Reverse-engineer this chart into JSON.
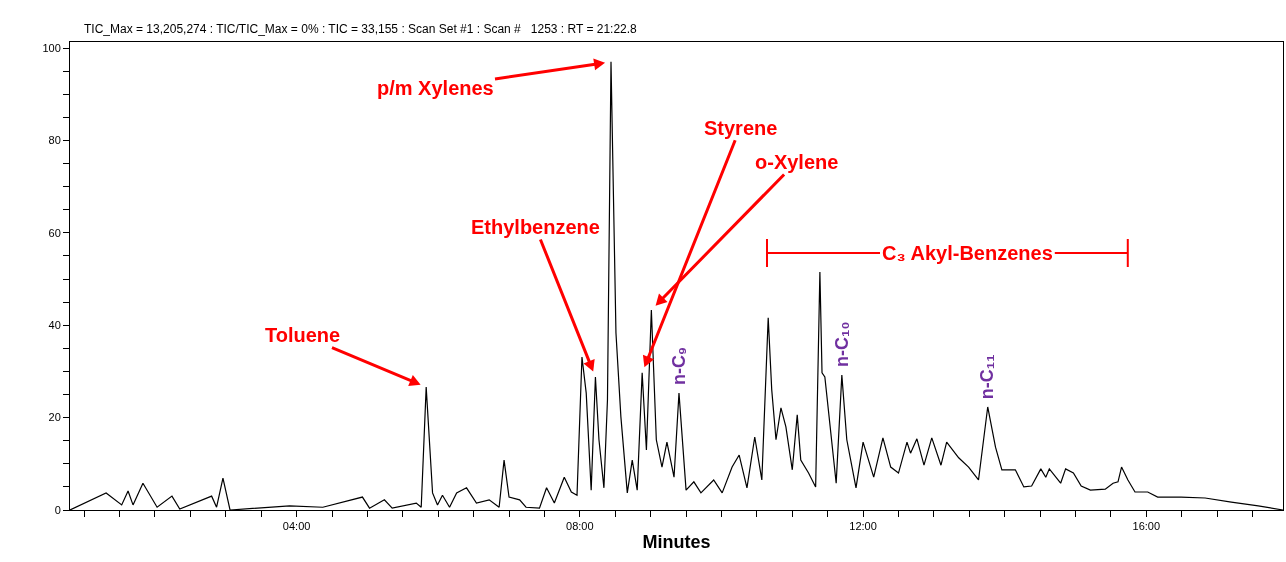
{
  "chart_data": {
    "type": "line",
    "xlabel": "Minutes",
    "x": [
      0.8,
      1.31,
      1.53,
      1.62,
      1.69,
      1.83,
      2.03,
      2.24,
      2.35,
      2.8,
      2.87,
      2.96,
      3.06,
      3.9,
      4.37,
      4.93,
      5.03,
      5.24,
      5.35,
      5.69,
      5.76,
      5.83,
      5.92,
      5.99,
      6.06,
      6.16,
      6.26,
      6.4,
      6.54,
      6.72,
      6.86,
      6.93,
      7.0,
      7.15,
      7.24,
      7.43,
      7.53,
      7.64,
      7.78,
      7.88,
      7.96,
      8.03,
      8.09,
      8.16,
      8.22,
      8.27,
      8.34,
      8.39,
      8.44,
      8.51,
      8.58,
      8.67,
      8.74,
      8.81,
      8.88,
      8.94,
      9.01,
      9.08,
      9.16,
      9.23,
      9.33,
      9.4,
      9.5,
      9.61,
      9.71,
      9.89,
      10.01,
      10.15,
      10.25,
      10.36,
      10.47,
      10.57,
      10.66,
      10.71,
      10.77,
      10.84,
      10.91,
      11.0,
      11.07,
      11.12,
      11.23,
      11.33,
      11.39,
      11.42,
      11.46,
      11.62,
      11.7,
      11.77,
      11.9,
      12.0,
      12.15,
      12.28,
      12.39,
      12.5,
      12.62,
      12.67,
      12.76,
      12.86,
      12.97,
      13.1,
      13.18,
      13.35,
      13.49,
      13.63,
      13.76,
      13.87,
      13.96,
      14.15,
      14.27,
      14.38,
      14.51,
      14.58,
      14.63,
      14.79,
      14.86,
      14.97,
      15.08,
      15.21,
      15.42,
      15.53,
      15.6,
      15.65,
      15.74,
      15.84,
      16.02,
      16.16,
      16.49,
      16.83,
      17.2,
      17.58,
      17.93
    ],
    "series": [
      {
        "color": "#000000",
        "values": [
          0,
          3.7,
          1.1,
          4.1,
          1.1,
          5.8,
          0.6,
          3.0,
          0.2,
          3.0,
          0.6,
          6.9,
          0,
          0.9,
          0.6,
          2.8,
          0.4,
          2.2,
          0.4,
          1.5,
          0.6,
          26.6,
          3.7,
          1.1,
          3.2,
          0.6,
          3.7,
          4.8,
          1.5,
          2.2,
          0.6,
          10.8,
          2.8,
          2.2,
          0.6,
          0.4,
          4.8,
          1.5,
          7.1,
          3.9,
          3.2,
          33.1,
          25.3,
          4.3,
          28.8,
          15.2,
          4.8,
          23.8,
          97.0,
          38.3,
          20.1,
          3.7,
          10.8,
          4.3,
          29.7,
          13.0,
          43.3,
          15.2,
          9.3,
          14.7,
          7.1,
          25.3,
          4.3,
          6.1,
          3.7,
          6.5,
          3.7,
          9.3,
          11.9,
          4.8,
          15.8,
          6.5,
          41.6,
          26.0,
          15.2,
          22.1,
          18.0,
          8.7,
          20.6,
          10.8,
          8.0,
          5.0,
          51.5,
          29.7,
          28.8,
          5.8,
          29.2,
          15.2,
          4.8,
          14.7,
          7.1,
          15.6,
          9.3,
          8.0,
          14.7,
          12.3,
          15.4,
          9.7,
          15.6,
          9.7,
          14.7,
          11.3,
          9.3,
          6.5,
          22.3,
          13.6,
          8.7,
          8.7,
          5.0,
          5.2,
          8.9,
          7.1,
          8.9,
          5.8,
          8.9,
          8.0,
          5.2,
          4.3,
          4.5,
          5.8,
          6.1,
          9.3,
          6.5,
          3.9,
          3.9,
          2.8,
          2.8,
          2.6,
          1.7,
          0.9,
          0
        ]
      }
    ],
    "xlim": [
      0.8,
      17.93
    ],
    "xticks": [
      {
        "value": 1,
        "label": null
      },
      {
        "value": 1.5,
        "label": null
      },
      {
        "value": 2,
        "label": null
      },
      {
        "value": 2.5,
        "label": null
      },
      {
        "value": 3,
        "label": null
      },
      {
        "value": 3.5,
        "label": null
      },
      {
        "value": 4,
        "label": "04:00"
      },
      {
        "value": 4.5,
        "label": null
      },
      {
        "value": 5,
        "label": null
      },
      {
        "value": 5.5,
        "label": null
      },
      {
        "value": 6,
        "label": null
      },
      {
        "value": 6.5,
        "label": null
      },
      {
        "value": 7,
        "label": null
      },
      {
        "value": 7.5,
        "label": null
      },
      {
        "value": 8,
        "label": "08:00"
      },
      {
        "value": 8.5,
        "label": null
      },
      {
        "value": 9,
        "label": null
      },
      {
        "value": 9.5,
        "label": null
      },
      {
        "value": 10,
        "label": null
      },
      {
        "value": 10.5,
        "label": null
      },
      {
        "value": 11,
        "label": null
      },
      {
        "value": 11.5,
        "label": null
      },
      {
        "value": 12,
        "label": "12:00"
      },
      {
        "value": 12.5,
        "label": null
      },
      {
        "value": 13,
        "label": null
      },
      {
        "value": 13.5,
        "label": null
      },
      {
        "value": 14,
        "label": null
      },
      {
        "value": 14.5,
        "label": null
      },
      {
        "value": 15,
        "label": null
      },
      {
        "value": 15.5,
        "label": null
      },
      {
        "value": 16,
        "label": "16:00"
      },
      {
        "value": 16.5,
        "label": null
      },
      {
        "value": 17,
        "label": null
      },
      {
        "value": 17.5,
        "label": null
      }
    ],
    "ylim": [
      0,
      101.3
    ],
    "yticks": [
      0,
      {
        "value": 5,
        "label": null
      },
      {
        "value": 10,
        "label": null
      },
      {
        "value": 15,
        "label": null
      },
      20,
      {
        "value": 25,
        "label": null
      },
      {
        "value": 30,
        "label": null
      },
      {
        "value": 35,
        "label": null
      },
      40,
      {
        "value": 45,
        "label": null
      },
      {
        "value": 50,
        "label": null
      },
      {
        "value": 55,
        "label": null
      },
      60,
      {
        "value": 65,
        "label": null
      },
      {
        "value": 70,
        "label": null
      },
      {
        "value": 75,
        "label": null
      },
      80,
      {
        "value": 85,
        "label": null
      },
      {
        "value": 90,
        "label": null
      },
      {
        "value": 95,
        "label": null
      },
      100
    ],
    "annotations": [
      "TIC_Max = 13,205,274 : TIC/TIC_Max = 0% : TIC = 33,155 : Scan Set #1 : Scan #   1253 : RT = 21:22.8",
      {
        "text": "Toluene",
        "x": 5.83,
        "y": 26.6
      },
      {
        "text": "Ethylbenzene",
        "x": 8.22,
        "y": 28.8
      },
      {
        "text": "p/m Xylenes",
        "x": 8.44,
        "y": 97.0
      },
      {
        "text": "Styrene",
        "x": 8.88,
        "y": 29.7
      },
      {
        "text": "o-Xylene",
        "x": 9.01,
        "y": 43.3
      },
      {
        "text": "n-C₉",
        "x": 9.4,
        "y": 25.3
      },
      {
        "text": "n-C₁₀",
        "x": 11.7,
        "y": 29.2
      },
      {
        "text": "n-C₁₁",
        "x": 13.76,
        "y": 22.3
      },
      "C₃ Akyl-Benzenes"
    ],
    "grid": false,
    "marker": "none",
    "line_style": "solid"
  }
}
